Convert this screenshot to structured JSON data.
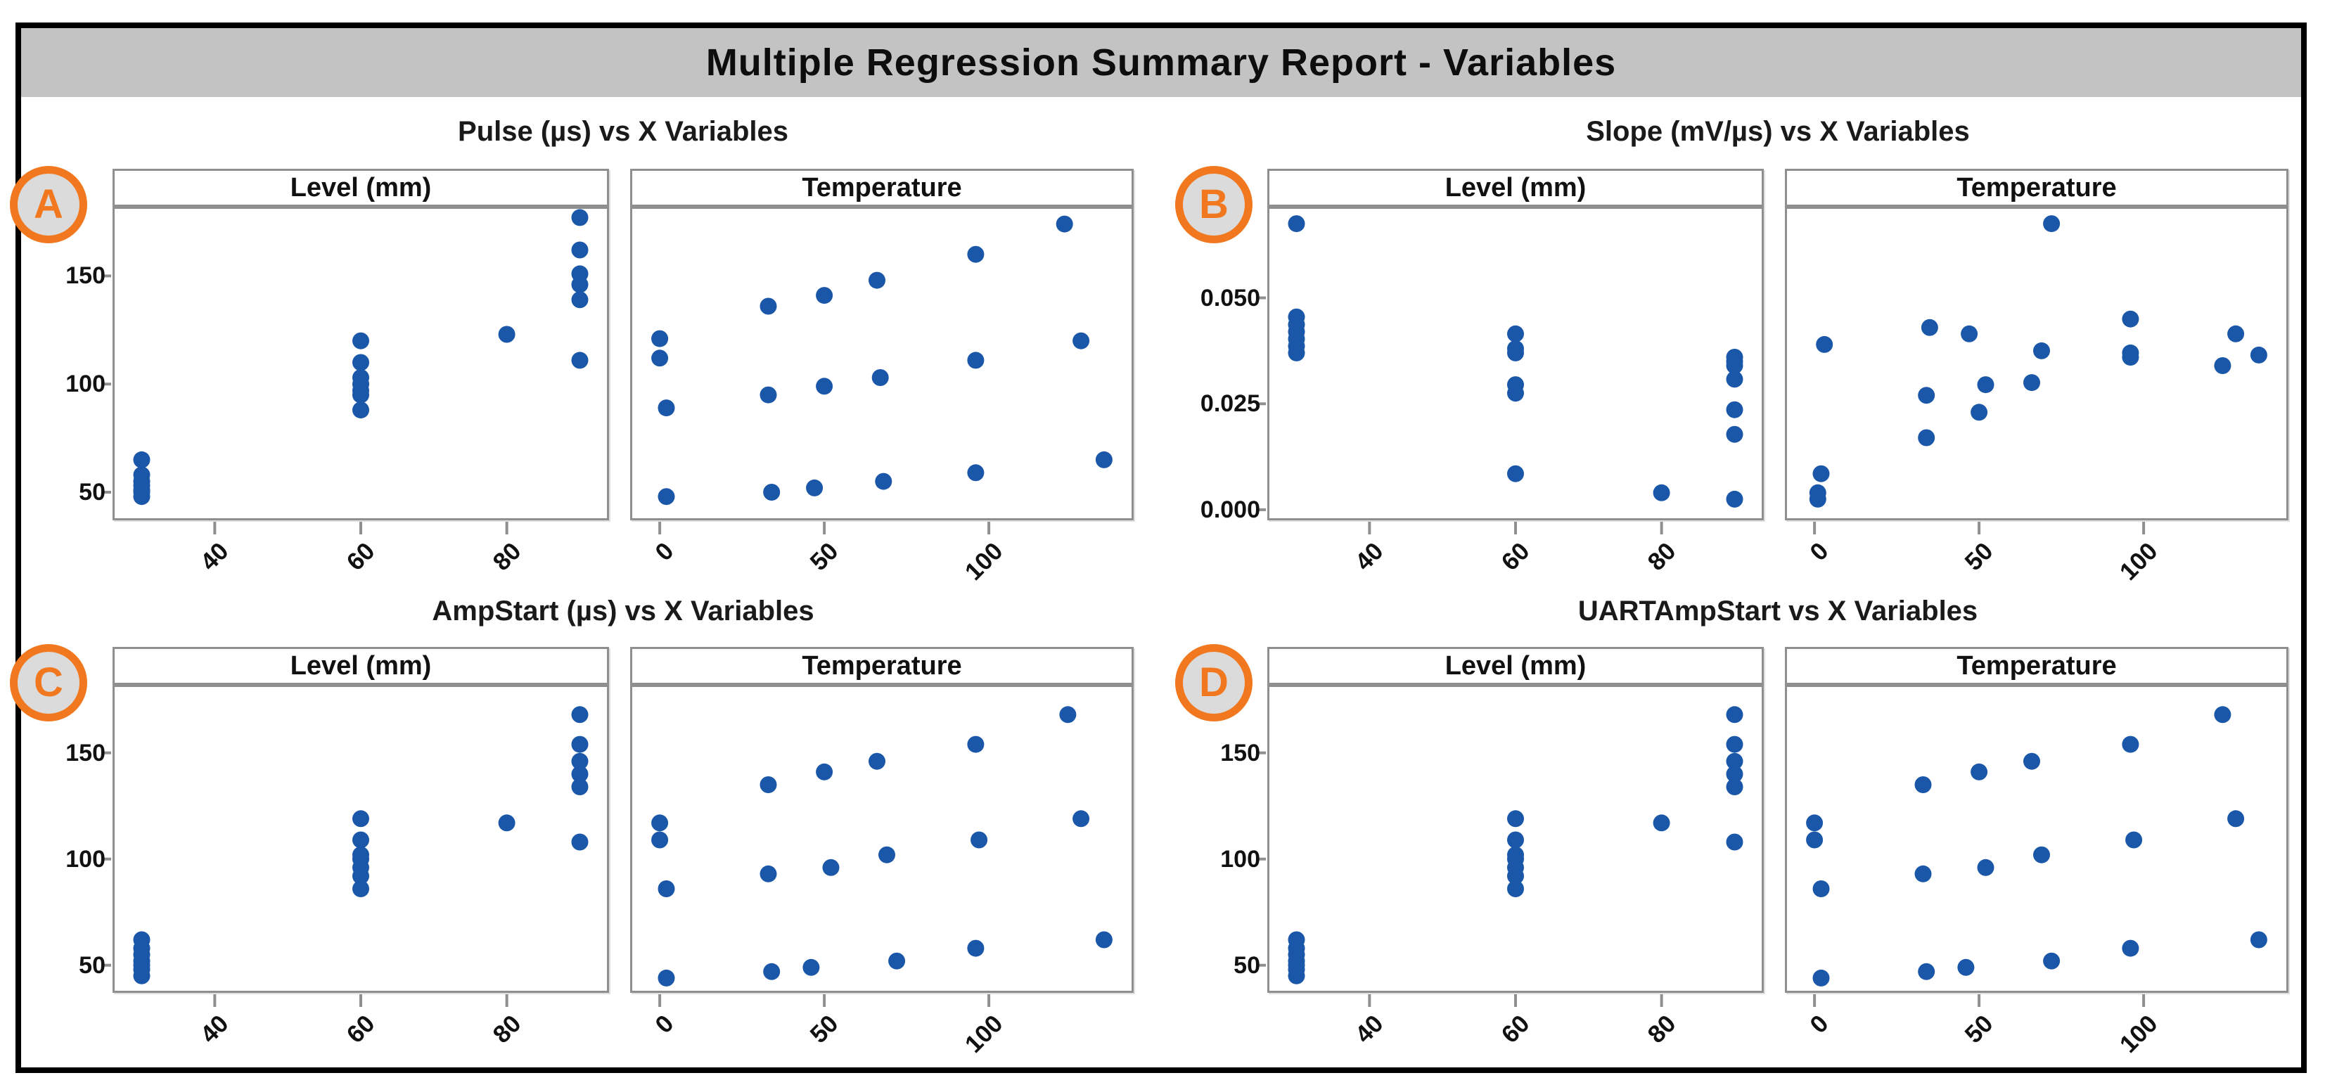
{
  "report": {
    "title": "Multiple Regression Summary Report - Variables"
  },
  "colors": {
    "dot_blue": "#1b57a8",
    "badge_orange": "#f1781e",
    "badge_fill": "#dbdbdb",
    "titlebar_gray": "#c3c3c3",
    "plot_border_gray": "#8f8f8f",
    "frame_black": "#000000"
  },
  "chart_data": [
    {
      "id": "A",
      "badge": "A",
      "title": "Pulse (µs) vs X Variables",
      "type": "scatter",
      "ylabel": "Pulse (µs)",
      "y_range": [
        37,
        182
      ],
      "y_ticks": [
        {
          "v": 50,
          "l": "50"
        },
        {
          "v": 100,
          "l": "100"
        },
        {
          "v": 150,
          "l": "150"
        }
      ],
      "legend": "none",
      "grid": false,
      "subplots": [
        {
          "header": "Level (mm)",
          "xlabel": "Level (mm)",
          "x_range": [
            26,
            94
          ],
          "x_ticks": [
            {
              "v": 40,
              "l": "40"
            },
            {
              "v": 60,
              "l": "60"
            },
            {
              "v": 80,
              "l": "80"
            }
          ],
          "points": [
            [
              30,
              65
            ],
            [
              30,
              58
            ],
            [
              30,
              55
            ],
            [
              30,
              53
            ],
            [
              30,
              51
            ],
            [
              30,
              50
            ],
            [
              30,
              48
            ],
            [
              60,
              120
            ],
            [
              60,
              110
            ],
            [
              60,
              103
            ],
            [
              60,
              100
            ],
            [
              60,
              97
            ],
            [
              60,
              95
            ],
            [
              60,
              88
            ],
            [
              80,
              123
            ],
            [
              90,
              177
            ],
            [
              90,
              162
            ],
            [
              90,
              151
            ],
            [
              90,
              146
            ],
            [
              90,
              139
            ],
            [
              90,
              111
            ]
          ]
        },
        {
          "header": "Temperature",
          "xlabel": "Temperature",
          "x_range": [
            -9,
            144
          ],
          "x_ticks": [
            {
              "v": 0,
              "l": "0"
            },
            {
              "v": 50,
              "l": "50"
            },
            {
              "v": 100,
              "l": "100"
            }
          ],
          "points": [
            [
              0,
              121
            ],
            [
              0,
              112
            ],
            [
              2,
              89
            ],
            [
              2,
              48
            ],
            [
              33,
              136
            ],
            [
              33,
              95
            ],
            [
              34,
              50
            ],
            [
              47,
              52
            ],
            [
              50,
              141
            ],
            [
              50,
              99
            ],
            [
              66,
              148
            ],
            [
              67,
              103
            ],
            [
              68,
              55
            ],
            [
              96,
              160
            ],
            [
              96,
              111
            ],
            [
              96,
              59
            ],
            [
              123,
              174
            ],
            [
              128,
              120
            ],
            [
              135,
              65
            ]
          ]
        }
      ]
    },
    {
      "id": "B",
      "badge": "B",
      "title": "Slope (mV/µs) vs X Variables",
      "type": "scatter",
      "ylabel": "Slope (mV/µs)",
      "y_range": [
        -0.0025,
        0.0715
      ],
      "y_ticks": [
        {
          "v": 0.0,
          "l": "0.000"
        },
        {
          "v": 0.025,
          "l": "0.025"
        },
        {
          "v": 0.05,
          "l": "0.050"
        }
      ],
      "legend": "none",
      "grid": false,
      "subplots": [
        {
          "header": "Level (mm)",
          "xlabel": "Level (mm)",
          "x_range": [
            26,
            94
          ],
          "x_ticks": [
            {
              "v": 40,
              "l": "40"
            },
            {
              "v": 60,
              "l": "60"
            },
            {
              "v": 80,
              "l": "80"
            }
          ],
          "points": [
            [
              30,
              0.0675
            ],
            [
              30,
              0.0455
            ],
            [
              30,
              0.0437
            ],
            [
              30,
              0.042
            ],
            [
              30,
              0.0403
            ],
            [
              30,
              0.0386
            ],
            [
              30,
              0.037
            ],
            [
              60,
              0.0415
            ],
            [
              60,
              0.038
            ],
            [
              60,
              0.037
            ],
            [
              60,
              0.0295
            ],
            [
              60,
              0.0275
            ],
            [
              60,
              0.0085
            ],
            [
              80,
              0.004
            ],
            [
              90,
              0.036
            ],
            [
              90,
              0.035
            ],
            [
              90,
              0.034
            ],
            [
              90,
              0.0308
            ],
            [
              90,
              0.0236
            ],
            [
              90,
              0.0178
            ],
            [
              90,
              0.0025
            ]
          ]
        },
        {
          "header": "Temperature",
          "xlabel": "Temperature",
          "x_range": [
            -9,
            144
          ],
          "x_ticks": [
            {
              "v": 0,
              "l": "0"
            },
            {
              "v": 50,
              "l": "50"
            },
            {
              "v": 100,
              "l": "100"
            }
          ],
          "points": [
            [
              1,
              0.004
            ],
            [
              1,
              0.0025
            ],
            [
              2,
              0.0085
            ],
            [
              3,
              0.039
            ],
            [
              34,
              0.027
            ],
            [
              34,
              0.017
            ],
            [
              35,
              0.043
            ],
            [
              47,
              0.0415
            ],
            [
              50,
              0.023
            ],
            [
              52,
              0.0295
            ],
            [
              66,
              0.03
            ],
            [
              69,
              0.0375
            ],
            [
              72,
              0.0675
            ],
            [
              96,
              0.045
            ],
            [
              96,
              0.037
            ],
            [
              96,
              0.036
            ],
            [
              124,
              0.034
            ],
            [
              128,
              0.0415
            ],
            [
              135,
              0.0365
            ]
          ]
        }
      ]
    },
    {
      "id": "C",
      "badge": "C",
      "title": "AmpStart (µs) vs X Variables",
      "type": "scatter",
      "ylabel": "AmpStart (µs)",
      "y_range": [
        37,
        182
      ],
      "y_ticks": [
        {
          "v": 50,
          "l": "50"
        },
        {
          "v": 100,
          "l": "100"
        },
        {
          "v": 150,
          "l": "150"
        }
      ],
      "legend": "none",
      "grid": false,
      "subplots": [
        {
          "header": "Level (mm)",
          "xlabel": "Level (mm)",
          "x_range": [
            26,
            94
          ],
          "x_ticks": [
            {
              "v": 40,
              "l": "40"
            },
            {
              "v": 60,
              "l": "60"
            },
            {
              "v": 80,
              "l": "80"
            }
          ],
          "points": [
            [
              30,
              62
            ],
            [
              30,
              58
            ],
            [
              30,
              55
            ],
            [
              30,
              52
            ],
            [
              30,
              50
            ],
            [
              30,
              48
            ],
            [
              30,
              45
            ],
            [
              60,
              119
            ],
            [
              60,
              109
            ],
            [
              60,
              102
            ],
            [
              60,
              100
            ],
            [
              60,
              96
            ],
            [
              60,
              92
            ],
            [
              60,
              86
            ],
            [
              80,
              117
            ],
            [
              90,
              168
            ],
            [
              90,
              154
            ],
            [
              90,
              146
            ],
            [
              90,
              140
            ],
            [
              90,
              134
            ],
            [
              90,
              108
            ]
          ]
        },
        {
          "header": "Temperature",
          "xlabel": "Temperature",
          "x_range": [
            -9,
            144
          ],
          "x_ticks": [
            {
              "v": 0,
              "l": "0"
            },
            {
              "v": 50,
              "l": "50"
            },
            {
              "v": 100,
              "l": "100"
            }
          ],
          "points": [
            [
              0,
              117
            ],
            [
              0,
              109
            ],
            [
              2,
              86
            ],
            [
              2,
              44
            ],
            [
              33,
              135
            ],
            [
              33,
              93
            ],
            [
              34,
              47
            ],
            [
              46,
              49
            ],
            [
              50,
              141
            ],
            [
              52,
              96
            ],
            [
              66,
              146
            ],
            [
              69,
              102
            ],
            [
              72,
              52
            ],
            [
              96,
              154
            ],
            [
              97,
              109
            ],
            [
              96,
              58
            ],
            [
              124,
              168
            ],
            [
              128,
              119
            ],
            [
              135,
              62
            ]
          ]
        }
      ]
    },
    {
      "id": "D",
      "badge": "D",
      "title": "UARTAmpStart vs X Variables",
      "type": "scatter",
      "ylabel": "UARTAmpStart",
      "y_range": [
        37,
        182
      ],
      "y_ticks": [
        {
          "v": 50,
          "l": "50"
        },
        {
          "v": 100,
          "l": "100"
        },
        {
          "v": 150,
          "l": "150"
        }
      ],
      "legend": "none",
      "grid": false,
      "subplots": [
        {
          "header": "Level (mm)",
          "xlabel": "Level (mm)",
          "x_range": [
            26,
            94
          ],
          "x_ticks": [
            {
              "v": 40,
              "l": "40"
            },
            {
              "v": 60,
              "l": "60"
            },
            {
              "v": 80,
              "l": "80"
            }
          ],
          "points": [
            [
              30,
              62
            ],
            [
              30,
              58
            ],
            [
              30,
              55
            ],
            [
              30,
              52
            ],
            [
              30,
              50
            ],
            [
              30,
              48
            ],
            [
              30,
              45
            ],
            [
              60,
              119
            ],
            [
              60,
              109
            ],
            [
              60,
              102
            ],
            [
              60,
              100
            ],
            [
              60,
              96
            ],
            [
              60,
              92
            ],
            [
              60,
              86
            ],
            [
              80,
              117
            ],
            [
              90,
              168
            ],
            [
              90,
              154
            ],
            [
              90,
              146
            ],
            [
              90,
              140
            ],
            [
              90,
              134
            ],
            [
              90,
              108
            ]
          ]
        },
        {
          "header": "Temperature",
          "xlabel": "Temperature",
          "x_range": [
            -9,
            144
          ],
          "x_ticks": [
            {
              "v": 0,
              "l": "0"
            },
            {
              "v": 50,
              "l": "50"
            },
            {
              "v": 100,
              "l": "100"
            }
          ],
          "points": [
            [
              0,
              117
            ],
            [
              0,
              109
            ],
            [
              2,
              86
            ],
            [
              2,
              44
            ],
            [
              33,
              135
            ],
            [
              33,
              93
            ],
            [
              34,
              47
            ],
            [
              46,
              49
            ],
            [
              50,
              141
            ],
            [
              52,
              96
            ],
            [
              66,
              146
            ],
            [
              69,
              102
            ],
            [
              72,
              52
            ],
            [
              96,
              154
            ],
            [
              97,
              109
            ],
            [
              96,
              58
            ],
            [
              124,
              168
            ],
            [
              128,
              119
            ],
            [
              135,
              62
            ]
          ]
        }
      ]
    }
  ]
}
